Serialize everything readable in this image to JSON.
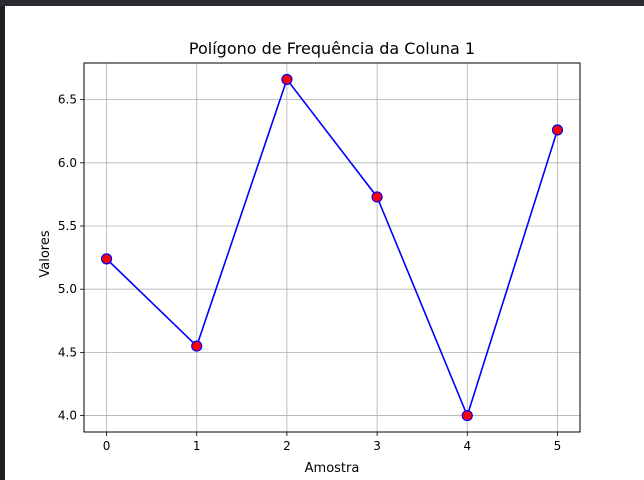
{
  "chart_data": {
    "type": "line",
    "title": "Polígono de Frequência da Coluna 1",
    "xlabel": "Amostra",
    "ylabel": "Valores",
    "x": [
      0,
      1,
      2,
      3,
      4,
      5
    ],
    "series": [
      {
        "values": [
          5.24,
          4.55,
          6.66,
          5.73,
          4.0,
          6.26
        ]
      }
    ],
    "xticks": [
      "0",
      "1",
      "2",
      "3",
      "4",
      "5"
    ],
    "yticks": [
      "4.0",
      "4.5",
      "5.0",
      "5.5",
      "6.0",
      "6.5"
    ],
    "xlim": [
      -0.25,
      5.25
    ],
    "ylim": [
      3.87,
      6.79
    ],
    "grid": true,
    "line_color": "#0000ff",
    "marker_face_color": "#ff0000",
    "marker_edge_color": "#0000ff"
  }
}
